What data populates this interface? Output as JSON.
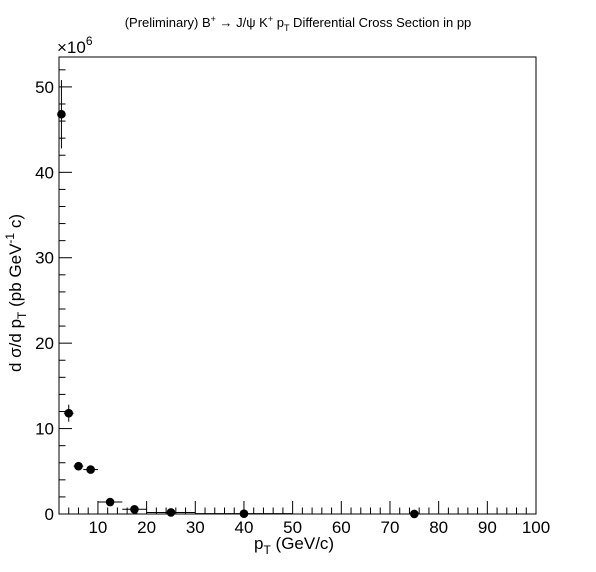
{
  "chart_data": {
    "type": "scatter",
    "title": {
      "prefix": "(Preliminary) B",
      "sup1": "+",
      "arrow": " → J/ψ K",
      "sup2": "+",
      "p": " p",
      "sub": "T",
      "suffix": " Differential Cross Section in pp"
    },
    "xlabel": {
      "main": "p",
      "sub": "T",
      "rest": " (GeV/c)"
    },
    "ylabel": {
      "part1": "d σ/d p",
      "sub": "T",
      "part2": " (pb GeV",
      "sup": "-1",
      "part3": " c)"
    },
    "y_exponent": {
      "base": "×10",
      "power": "6"
    },
    "xlim": [
      2,
      100
    ],
    "ylim": [
      0,
      53.5
    ],
    "x_ticks": [
      10,
      20,
      30,
      40,
      50,
      60,
      70,
      80,
      90,
      100
    ],
    "y_ticks": [
      0,
      10,
      20,
      30,
      40,
      50
    ],
    "grid": false,
    "legend": "none",
    "points": [
      {
        "x": 2.5,
        "y": 46.8,
        "xerr": 0.5,
        "yerr": 4.0
      },
      {
        "x": 4.0,
        "y": 11.8,
        "xerr": 1.0,
        "yerr": 1.0
      },
      {
        "x": 6.0,
        "y": 5.6,
        "xerr": 1.0,
        "yerr": 0.35
      },
      {
        "x": 8.5,
        "y": 5.2,
        "xerr": 1.5,
        "yerr": 0.3
      },
      {
        "x": 12.5,
        "y": 1.4,
        "xerr": 2.5,
        "yerr": 0.12
      },
      {
        "x": 17.5,
        "y": 0.55,
        "xerr": 2.5,
        "yerr": 0.06
      },
      {
        "x": 25.0,
        "y": 0.18,
        "xerr": 5.0,
        "yerr": 0.03
      },
      {
        "x": 40.0,
        "y": 0.04,
        "xerr": 10.0,
        "yerr": 0.01
      },
      {
        "x": 75.0,
        "y": 0.004,
        "xerr": 25.0,
        "yerr": 0.002
      }
    ]
  }
}
